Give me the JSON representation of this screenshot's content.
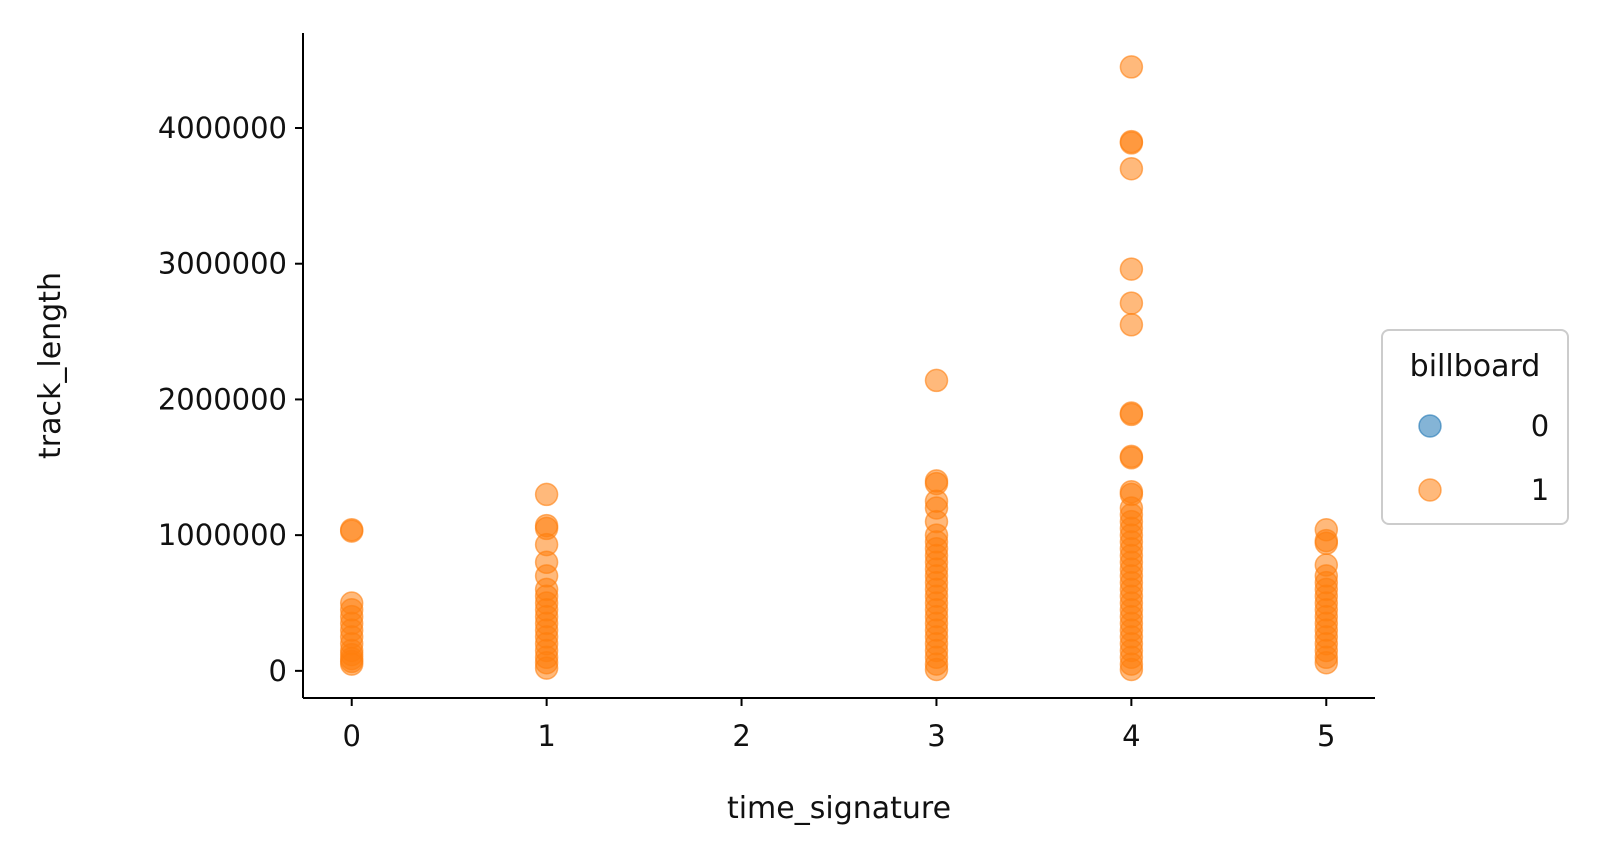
{
  "chart_data": {
    "type": "scatter",
    "title": "",
    "xlabel": "time_signature",
    "ylabel": "track_length",
    "xlim": [
      -0.25,
      5.25
    ],
    "ylim": [
      -200000,
      4700000
    ],
    "x_ticks": [
      0,
      1,
      2,
      3,
      4,
      5
    ],
    "x_tick_labels": [
      "0",
      "1",
      "2",
      "3",
      "4",
      "5"
    ],
    "y_ticks": [
      0,
      1000000,
      2000000,
      3000000,
      4000000
    ],
    "y_tick_labels": [
      "0",
      "1000000",
      "2000000",
      "3000000",
      "4000000"
    ],
    "grid": false,
    "legend": {
      "title": "billboard",
      "placement": "right-outside",
      "entries": [
        {
          "label": "0",
          "color": "#1f77b4"
        },
        {
          "label": "1",
          "color": "#ff7f0e"
        }
      ]
    },
    "series": [
      {
        "name": "0",
        "color": "#1f77b4",
        "points": []
      },
      {
        "name": "1",
        "color": "#ff7f0e",
        "points": [
          [
            0,
            1030000
          ],
          [
            0,
            1040000
          ],
          [
            0,
            500000
          ],
          [
            0,
            450000
          ],
          [
            0,
            400000
          ],
          [
            0,
            350000
          ],
          [
            0,
            300000
          ],
          [
            0,
            250000
          ],
          [
            0,
            200000
          ],
          [
            0,
            150000
          ],
          [
            0,
            120000
          ],
          [
            0,
            90000
          ],
          [
            0,
            70000
          ],
          [
            0,
            50000
          ],
          [
            1,
            1300000
          ],
          [
            1,
            1070000
          ],
          [
            1,
            1050000
          ],
          [
            1,
            930000
          ],
          [
            1,
            800000
          ],
          [
            1,
            700000
          ],
          [
            1,
            600000
          ],
          [
            1,
            550000
          ],
          [
            1,
            500000
          ],
          [
            1,
            450000
          ],
          [
            1,
            400000
          ],
          [
            1,
            350000
          ],
          [
            1,
            300000
          ],
          [
            1,
            250000
          ],
          [
            1,
            200000
          ],
          [
            1,
            150000
          ],
          [
            1,
            100000
          ],
          [
            1,
            60000
          ],
          [
            1,
            20000
          ],
          [
            3,
            2140000
          ],
          [
            3,
            1400000
          ],
          [
            3,
            1380000
          ],
          [
            3,
            1250000
          ],
          [
            3,
            1200000
          ],
          [
            3,
            1100000
          ],
          [
            3,
            1000000
          ],
          [
            3,
            950000
          ],
          [
            3,
            900000
          ],
          [
            3,
            850000
          ],
          [
            3,
            800000
          ],
          [
            3,
            750000
          ],
          [
            3,
            700000
          ],
          [
            3,
            650000
          ],
          [
            3,
            600000
          ],
          [
            3,
            550000
          ],
          [
            3,
            500000
          ],
          [
            3,
            450000
          ],
          [
            3,
            400000
          ],
          [
            3,
            350000
          ],
          [
            3,
            300000
          ],
          [
            3,
            250000
          ],
          [
            3,
            200000
          ],
          [
            3,
            150000
          ],
          [
            3,
            100000
          ],
          [
            3,
            50000
          ],
          [
            3,
            10000
          ],
          [
            4,
            4450000
          ],
          [
            4,
            3900000
          ],
          [
            4,
            3890000
          ],
          [
            4,
            3700000
          ],
          [
            4,
            2960000
          ],
          [
            4,
            2710000
          ],
          [
            4,
            2550000
          ],
          [
            4,
            1900000
          ],
          [
            4,
            1890000
          ],
          [
            4,
            1580000
          ],
          [
            4,
            1570000
          ],
          [
            4,
            1320000
          ],
          [
            4,
            1300000
          ],
          [
            4,
            1200000
          ],
          [
            4,
            1150000
          ],
          [
            4,
            1100000
          ],
          [
            4,
            1050000
          ],
          [
            4,
            1000000
          ],
          [
            4,
            950000
          ],
          [
            4,
            900000
          ],
          [
            4,
            850000
          ],
          [
            4,
            800000
          ],
          [
            4,
            750000
          ],
          [
            4,
            700000
          ],
          [
            4,
            650000
          ],
          [
            4,
            600000
          ],
          [
            4,
            550000
          ],
          [
            4,
            500000
          ],
          [
            4,
            450000
          ],
          [
            4,
            400000
          ],
          [
            4,
            350000
          ],
          [
            4,
            300000
          ],
          [
            4,
            250000
          ],
          [
            4,
            200000
          ],
          [
            4,
            150000
          ],
          [
            4,
            100000
          ],
          [
            4,
            50000
          ],
          [
            4,
            10000
          ],
          [
            5,
            1040000
          ],
          [
            5,
            960000
          ],
          [
            5,
            940000
          ],
          [
            5,
            780000
          ],
          [
            5,
            700000
          ],
          [
            5,
            650000
          ],
          [
            5,
            600000
          ],
          [
            5,
            550000
          ],
          [
            5,
            500000
          ],
          [
            5,
            450000
          ],
          [
            5,
            400000
          ],
          [
            5,
            350000
          ],
          [
            5,
            300000
          ],
          [
            5,
            250000
          ],
          [
            5,
            200000
          ],
          [
            5,
            150000
          ],
          [
            5,
            100000
          ],
          [
            5,
            60000
          ]
        ]
      }
    ]
  }
}
